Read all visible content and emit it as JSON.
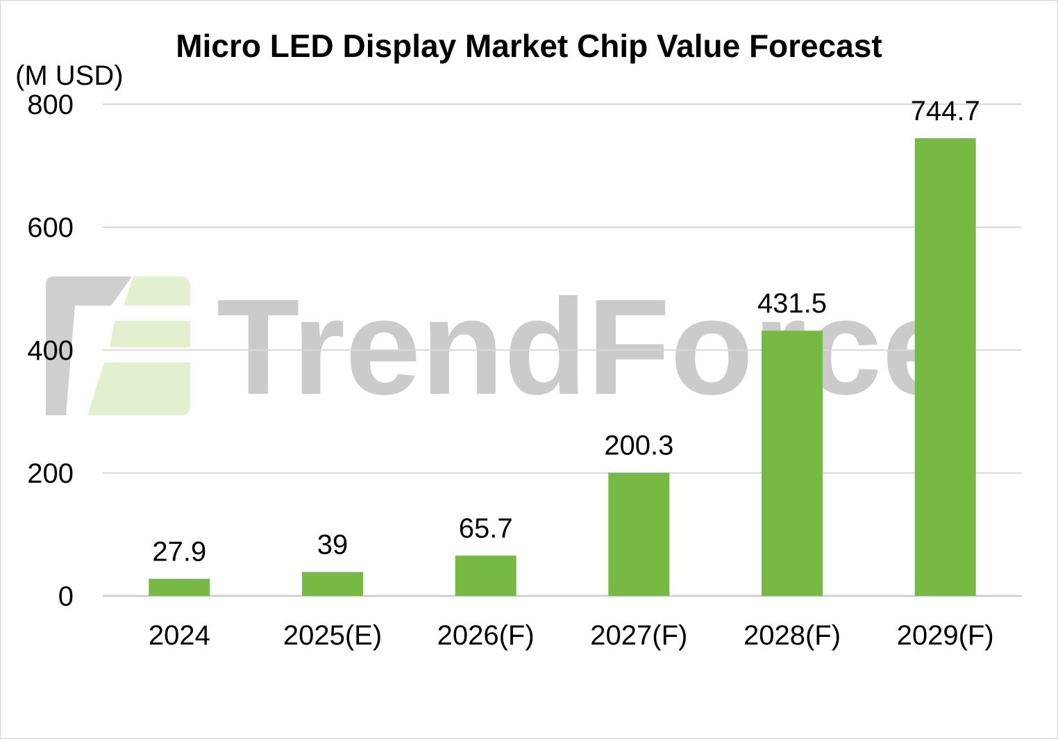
{
  "chart_data": {
    "type": "bar",
    "title": "Micro LED Display Market Chip Value Forecast",
    "ylabel": "(M USD)",
    "xlabel": "",
    "categories": [
      "2024",
      "2025(E)",
      "2026(F)",
      "2027(F)",
      "2028(F)",
      "2029(F)"
    ],
    "values": [
      27.9,
      39,
      65.7,
      200.3,
      431.5,
      744.7
    ],
    "value_labels": [
      "27.9",
      "39",
      "65.7",
      "200.3",
      "431.5",
      "744.7"
    ],
    "ylim": [
      0,
      800
    ],
    "yticks": [
      0,
      200,
      400,
      600,
      800
    ],
    "grid": true,
    "legend": "none",
    "bar_color": "#76b943",
    "grid_color": "#d9d9d9"
  },
  "watermark": {
    "text": "TrendForce",
    "logo_color_gray": "#bdbdbd",
    "logo_color_green": "#e3f0cf"
  }
}
